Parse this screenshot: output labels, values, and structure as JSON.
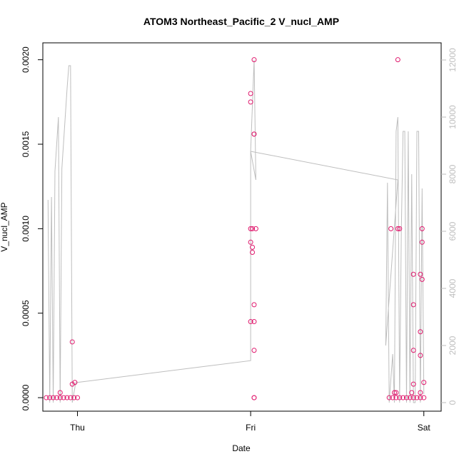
{
  "chart_data": {
    "type": "scatter",
    "title": "ATOM3 Northeast_Pacific_2 V_nucl_AMP",
    "xlabel": "Date",
    "ylabel": "V_nucl_AMP",
    "x_ticks": [
      "Thu",
      "Fri",
      "Sat"
    ],
    "xlim": [
      -0.2,
      2.1
    ],
    "ylim_left": [
      -8e-05,
      0.0021
    ],
    "ylim_right": [
      -300,
      12600
    ],
    "left_ticks": [
      "0.0000",
      "0.0005",
      "0.0010",
      "0.0015",
      "0.0020"
    ],
    "right_ticks": [
      "0",
      "2000",
      "4000",
      "6000",
      "8000",
      "10000",
      "12000"
    ],
    "colors": {
      "points": "#e0196d",
      "line": "#bebebe",
      "axis": "#000000"
    },
    "series": [
      {
        "type": "points",
        "axis": "left",
        "values": [
          [
            -0.18,
            0.0
          ],
          [
            -0.16,
            0.0
          ],
          [
            -0.14,
            0.0
          ],
          [
            -0.12,
            0.0
          ],
          [
            -0.1,
            0.0
          ],
          [
            -0.08,
            0.0
          ],
          [
            -0.06,
            0.0
          ],
          [
            -0.04,
            0.0
          ],
          [
            -0.02,
            0.0
          ],
          [
            0.0,
            0.0
          ],
          [
            -0.1,
            3e-05
          ],
          [
            -0.03,
            0.00033
          ],
          [
            -0.03,
            8e-05
          ],
          [
            -0.015,
            9e-05
          ],
          [
            1.0,
            0.0018
          ],
          [
            1.0,
            0.00175
          ],
          [
            1.02,
            0.002
          ],
          [
            1.02,
            0.00156
          ],
          [
            1.02,
            0.00156
          ],
          [
            1.0,
            0.001
          ],
          [
            1.01,
            0.001
          ],
          [
            1.03,
            0.001
          ],
          [
            1.0,
            0.00092
          ],
          [
            1.01,
            0.00089
          ],
          [
            1.01,
            0.00086
          ],
          [
            1.02,
            0.00055
          ],
          [
            1.0,
            0.00045
          ],
          [
            1.02,
            0.00045
          ],
          [
            1.02,
            0.00028
          ],
          [
            1.02,
            0.0
          ],
          [
            1.02,
            0.0
          ],
          [
            1.8,
            0.0
          ],
          [
            1.82,
            0.0
          ],
          [
            1.84,
            0.0
          ],
          [
            1.86,
            0.0
          ],
          [
            1.88,
            0.0
          ],
          [
            1.9,
            0.0
          ],
          [
            1.92,
            0.0
          ],
          [
            1.94,
            0.0
          ],
          [
            1.96,
            0.0
          ],
          [
            1.98,
            0.0
          ],
          [
            2.0,
            0.0
          ],
          [
            1.81,
            0.001
          ],
          [
            1.85,
            0.002
          ],
          [
            1.85,
            0.001
          ],
          [
            1.86,
            0.001
          ],
          [
            1.83,
            3e-05
          ],
          [
            1.84,
            3e-05
          ],
          [
            1.93,
            3e-05
          ],
          [
            1.98,
            3e-05
          ],
          [
            1.94,
            0.00073
          ],
          [
            1.94,
            0.00055
          ],
          [
            1.94,
            0.00028
          ],
          [
            1.94,
            8e-05
          ],
          [
            1.98,
            0.00073
          ],
          [
            1.99,
            0.0007
          ],
          [
            1.99,
            0.00092
          ],
          [
            1.99,
            0.001
          ],
          [
            1.98,
            0.00039
          ],
          [
            1.98,
            0.00025
          ],
          [
            2.0,
            9e-05
          ]
        ]
      },
      {
        "type": "line",
        "axis": "right",
        "values": [
          [
            -0.17,
            7100
          ],
          [
            -0.16,
            0
          ],
          [
            -0.15,
            7200
          ],
          [
            -0.14,
            0
          ],
          [
            -0.13,
            8100
          ],
          [
            -0.11,
            10000
          ],
          [
            -0.1,
            0
          ],
          [
            -0.09,
            8200
          ],
          [
            -0.06,
            11000
          ],
          [
            -0.05,
            11800
          ],
          [
            -0.04,
            11800
          ],
          [
            -0.03,
            0
          ],
          [
            -0.01,
            700
          ],
          [
            1.0,
            1470
          ],
          [
            1.0,
            8800
          ],
          [
            1.02,
            12000
          ],
          [
            1.03,
            7800
          ],
          [
            1.0,
            8800
          ],
          [
            1.85,
            7800
          ],
          [
            1.78,
            2000
          ],
          [
            1.79,
            7700
          ],
          [
            1.8,
            0
          ],
          [
            1.82,
            1700
          ],
          [
            1.83,
            0
          ],
          [
            1.84,
            9500
          ],
          [
            1.85,
            10000
          ],
          [
            1.86,
            0
          ],
          [
            1.87,
            6000
          ],
          [
            1.88,
            9500
          ],
          [
            1.89,
            9500
          ],
          [
            1.9,
            0
          ],
          [
            1.91,
            9500
          ],
          [
            1.92,
            0
          ],
          [
            1.93,
            8000
          ],
          [
            1.94,
            0
          ],
          [
            1.95,
            0
          ],
          [
            1.96,
            9500
          ],
          [
            1.97,
            9500
          ],
          [
            1.98,
            0
          ],
          [
            1.99,
            7500
          ],
          [
            2.0,
            300
          ]
        ]
      }
    ]
  }
}
